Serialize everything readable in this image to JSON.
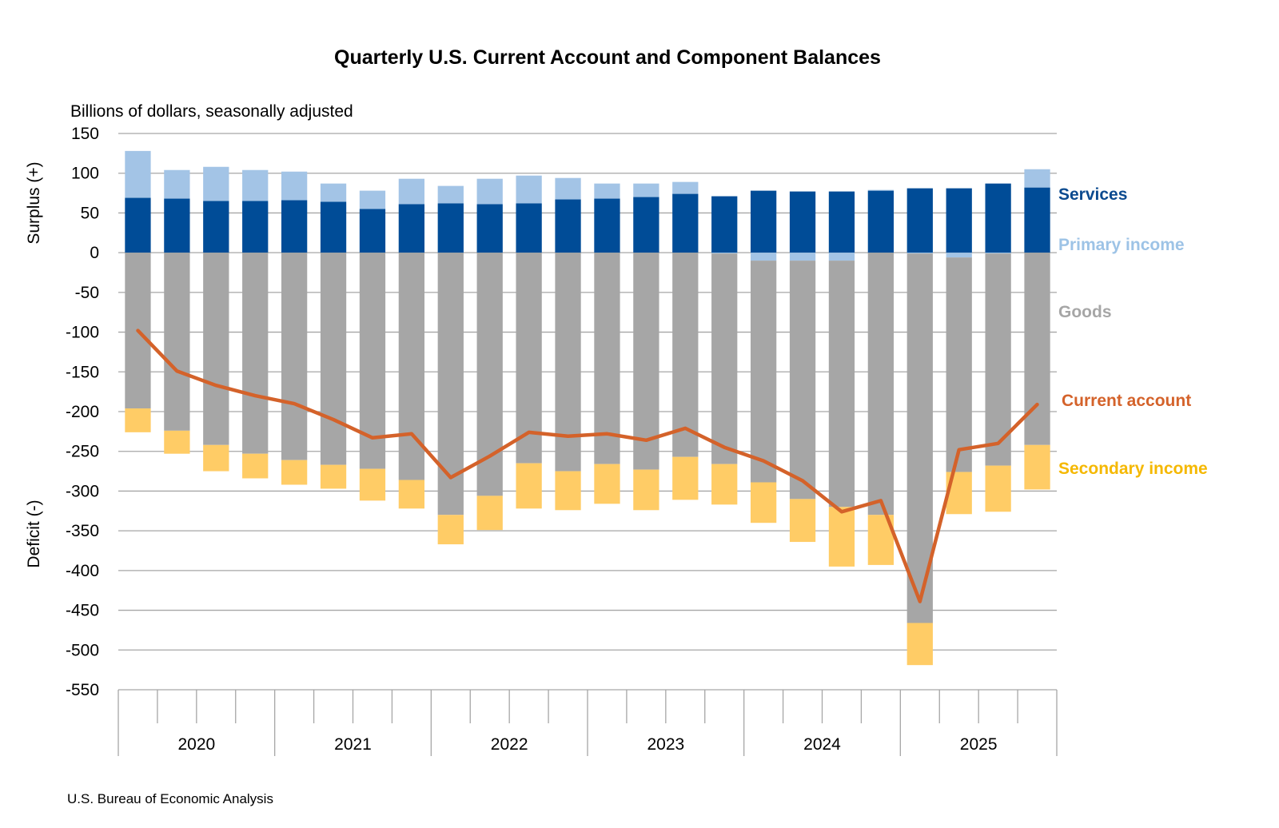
{
  "chart_data": {
    "type": "bar",
    "stacked": true,
    "title": "Quarterly U.S. Current Account and Component Balances",
    "subtitle": "Billions of dollars, seasonally adjusted",
    "ylabel_top": "Surplus (+)",
    "ylabel_bottom": "Deficit (-)",
    "ylim": [
      -550,
      150
    ],
    "yticks": [
      150,
      100,
      50,
      0,
      -50,
      -100,
      -150,
      -200,
      -250,
      -300,
      -350,
      -400,
      -450,
      -500,
      -550
    ],
    "grid": true,
    "years": [
      "2020",
      "2021",
      "2022",
      "2023",
      "2024",
      "2025"
    ],
    "quarters_per_year": 4,
    "source": "U.S. Bureau of Economic Analysis",
    "colors": {
      "services": "#004C97",
      "primary_income": "#A3C4E6",
      "goods": "#A6A6A6",
      "secondary_income": "#FFCC66",
      "current_account": "#D4622A",
      "services_label": "#0B4A8F",
      "primary_label": "#9DC3E6",
      "goods_label": "#A6A6A6",
      "current_label": "#D4622A",
      "secondary_label": "#F5B800",
      "grid": "#A6A6A6"
    },
    "series": [
      {
        "name": "Services",
        "key": "services",
        "kind": "bar",
        "values": [
          69,
          68,
          65,
          65,
          66,
          64,
          55,
          61,
          62,
          61,
          62,
          67,
          68,
          70,
          74,
          71,
          78,
          77,
          77,
          78,
          81,
          81,
          87,
          82
        ]
      },
      {
        "name": "Primary income",
        "key": "primary_income",
        "kind": "bar",
        "values": [
          59,
          36,
          43,
          39,
          36,
          23,
          23,
          32,
          22,
          32,
          35,
          27,
          19,
          17,
          15,
          -1,
          -10,
          -10,
          -10,
          1,
          -1,
          -6,
          -1,
          23
        ]
      },
      {
        "name": "Goods",
        "key": "goods",
        "kind": "bar",
        "values": [
          -196,
          -224,
          -242,
          -253,
          -261,
          -267,
          -272,
          -286,
          -330,
          -306,
          -265,
          -275,
          -266,
          -273,
          -257,
          -265,
          -279,
          -300,
          -310,
          -330,
          -465,
          -270,
          -267,
          -242
        ]
      },
      {
        "name": "Secondary income",
        "key": "secondary_income",
        "kind": "bar",
        "values": [
          -30,
          -29,
          -33,
          -31,
          -31,
          -30,
          -40,
          -36,
          -37,
          -43,
          -57,
          -49,
          -50,
          -51,
          -54,
          -51,
          -51,
          -54,
          -75,
          -63,
          -53,
          -53,
          -58,
          -56
        ]
      },
      {
        "name": "Current account",
        "key": "current_account",
        "kind": "line",
        "values": [
          -98,
          -149,
          -167,
          -180,
          -190,
          -210,
          -233,
          -228,
          -283,
          -256,
          -226,
          -231,
          -228,
          -236,
          -221,
          -245,
          -262,
          -287,
          -326,
          -312,
          -439,
          -248,
          -240,
          -191
        ]
      }
    ]
  }
}
